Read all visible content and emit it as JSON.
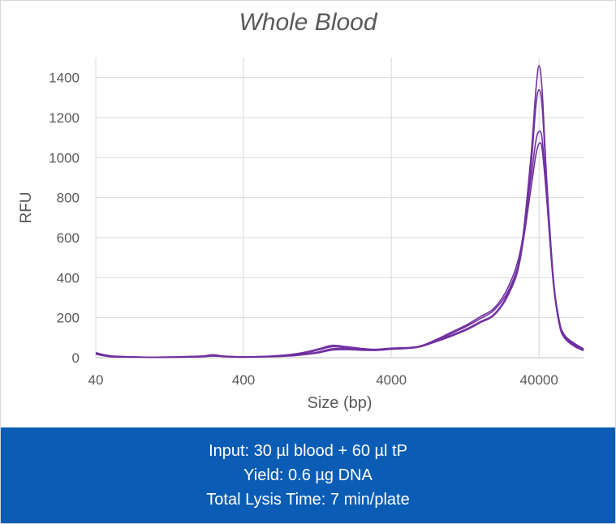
{
  "chart_data": {
    "type": "line",
    "title": "Whole Blood",
    "xlabel": "Size (bp)",
    "ylabel": "RFU",
    "xscale": "log",
    "xlim": [
      40,
      80000
    ],
    "ylim": [
      0,
      1500
    ],
    "xticks": [
      40,
      400,
      4000,
      40000
    ],
    "yticks": [
      0,
      200,
      400,
      600,
      800,
      1000,
      1200,
      1400
    ],
    "grid": true,
    "line_color": "#7030a0",
    "series": [
      {
        "x": [
          40,
          50,
          70,
          100,
          150,
          200,
          250,
          300,
          400,
          600,
          800,
          1000,
          1300,
          1600,
          2000,
          3000,
          4000,
          6000,
          8000,
          10000,
          13000,
          16000,
          20000,
          25000,
          30000,
          35000,
          38000,
          40000,
          42000,
          45000,
          50000,
          55000,
          60000,
          70000,
          80000
        ],
        "y": [
          25,
          10,
          5,
          3,
          5,
          8,
          10,
          8,
          5,
          8,
          15,
          25,
          45,
          62,
          55,
          42,
          48,
          55,
          85,
          110,
          145,
          180,
          220,
          330,
          520,
          980,
          1330,
          1460,
          1330,
          900,
          400,
          180,
          110,
          70,
          45
        ]
      },
      {
        "x": [
          40,
          50,
          70,
          100,
          150,
          200,
          250,
          300,
          400,
          600,
          800,
          1000,
          1300,
          1600,
          2000,
          3000,
          4000,
          6000,
          8000,
          10000,
          13000,
          16000,
          20000,
          25000,
          30000,
          35000,
          38000,
          40000,
          42000,
          45000,
          50000,
          55000,
          60000,
          70000,
          80000
        ],
        "y": [
          22,
          8,
          4,
          3,
          4,
          6,
          15,
          7,
          4,
          7,
          12,
          20,
          40,
          55,
          50,
          40,
          45,
          52,
          80,
          105,
          140,
          175,
          215,
          320,
          500,
          930,
          1250,
          1340,
          1250,
          880,
          390,
          170,
          105,
          65,
          40
        ]
      },
      {
        "x": [
          40,
          50,
          70,
          100,
          150,
          200,
          250,
          300,
          400,
          600,
          800,
          1000,
          1300,
          1600,
          2000,
          3000,
          4000,
          6000,
          8000,
          10000,
          13000,
          16000,
          20000,
          25000,
          30000,
          35000,
          38000,
          40000,
          42000,
          45000,
          50000,
          55000,
          60000,
          70000,
          80000
        ],
        "y": [
          20,
          6,
          4,
          2,
          3,
          5,
          9,
          6,
          3,
          6,
          10,
          16,
          30,
          45,
          45,
          38,
          43,
          55,
          90,
          125,
          165,
          205,
          250,
          360,
          540,
          880,
          1080,
          1130,
          1090,
          820,
          380,
          165,
          100,
          60,
          38
        ]
      },
      {
        "x": [
          40,
          50,
          70,
          100,
          150,
          200,
          250,
          300,
          400,
          600,
          800,
          1000,
          1300,
          1600,
          2000,
          3000,
          4000,
          6000,
          8000,
          10000,
          13000,
          16000,
          20000,
          25000,
          30000,
          35000,
          38000,
          40000,
          42000,
          45000,
          50000,
          55000,
          60000,
          70000,
          80000
        ],
        "y": [
          18,
          5,
          3,
          2,
          3,
          4,
          8,
          5,
          3,
          5,
          8,
          14,
          25,
          38,
          40,
          36,
          42,
          52,
          85,
          118,
          158,
          195,
          240,
          340,
          510,
          830,
          1010,
          1070,
          1040,
          800,
          370,
          160,
          95,
          55,
          35
        ]
      }
    ]
  },
  "info": {
    "line1": "Input: 30 µl blood + 60 µl tP",
    "line2": "Yield:  0.6 µg DNA",
    "line3": "Total  Lysis Time: 7 min/plate"
  }
}
